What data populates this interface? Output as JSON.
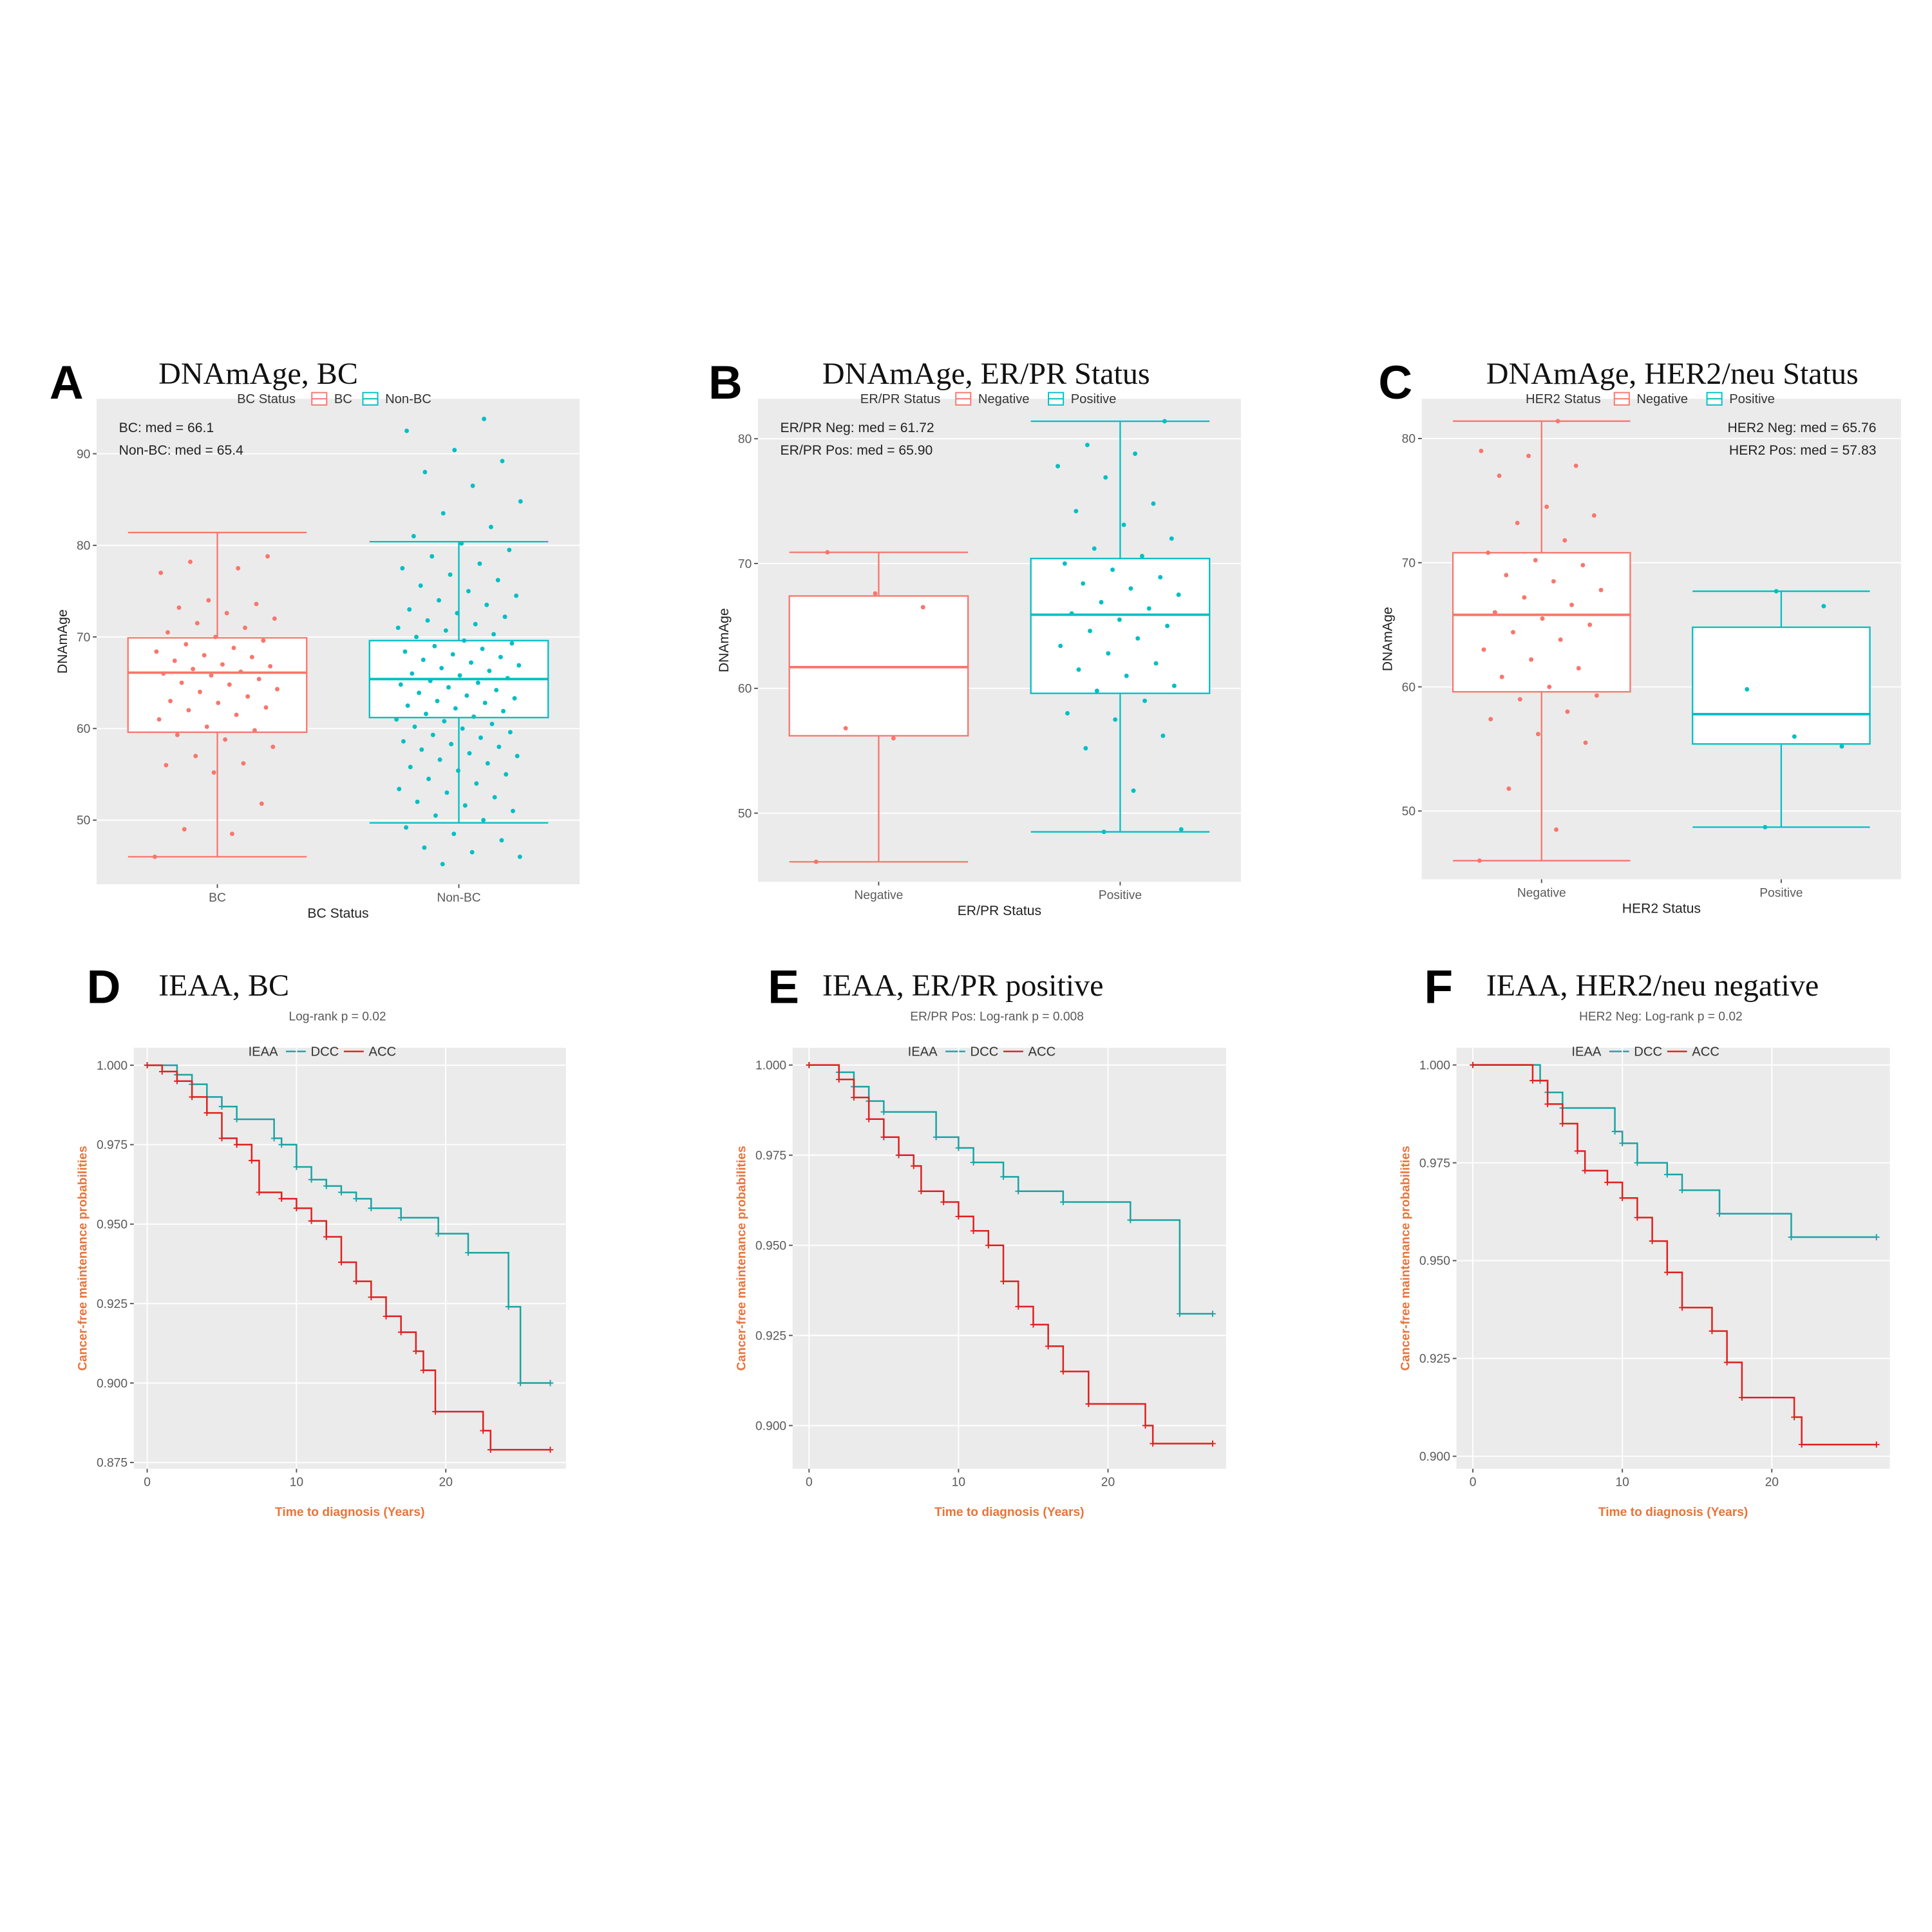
{
  "chart_data": [
    {
      "type": "box",
      "panel": "A",
      "title": "DNAmAge, BC",
      "legend_title": "BC Status",
      "xlabel": "BC Status",
      "ylabel": "DNAmAge",
      "annotations": [
        "BC: med = 66.1",
        "Non-BC: med = 65.4"
      ],
      "annotation_corner": "top-left",
      "categories": [
        "BC",
        "Non-BC"
      ],
      "colors": [
        "#F8766D",
        "#00BFC4"
      ],
      "ylim": [
        43,
        96
      ],
      "yticks": [
        50,
        60,
        70,
        80,
        90
      ],
      "grid": true,
      "stats": [
        {
          "whislo": 46,
          "q1": 59.6,
          "med": 66.1,
          "q3": 69.9,
          "whishi": 81.4,
          "points": [
            46,
            48.5,
            49,
            51.8,
            55.2,
            56,
            56.2,
            57,
            58,
            58.8,
            59.3,
            59.8,
            60.2,
            61,
            61.5,
            62,
            62.3,
            62.8,
            63,
            63.5,
            64,
            64.3,
            64.8,
            65,
            65.4,
            65.8,
            66,
            66.2,
            66.5,
            66.8,
            67,
            67.4,
            67.8,
            68,
            68.4,
            68.8,
            69.2,
            69.6,
            70,
            70.5,
            71,
            71.5,
            72,
            72.6,
            73.2,
            73.6,
            74,
            77,
            77.5,
            78.2,
            78.8
          ]
        },
        {
          "whislo": 49.7,
          "q1": 61.2,
          "med": 65.4,
          "q3": 69.6,
          "whishi": 80.4,
          "points": [
            45.2,
            46,
            46.5,
            47,
            47.8,
            48.5,
            49.2,
            50,
            50.5,
            51,
            51.6,
            52,
            52.5,
            53,
            53.4,
            54,
            54.5,
            55,
            55.4,
            55.8,
            56.2,
            56.6,
            57,
            57.3,
            57.7,
            58,
            58.3,
            58.6,
            59,
            59.3,
            59.6,
            60,
            60.2,
            60.5,
            60.8,
            61,
            61.3,
            61.6,
            61.9,
            62.2,
            62.5,
            62.8,
            63,
            63.3,
            63.6,
            63.9,
            64.2,
            64.5,
            64.8,
            65,
            65.2,
            65.5,
            65.8,
            66,
            66.3,
            66.6,
            66.9,
            67.2,
            67.5,
            67.8,
            68.1,
            68.4,
            68.7,
            69,
            69.3,
            69.6,
            70,
            70.3,
            70.7,
            71,
            71.4,
            71.8,
            72.2,
            72.6,
            73,
            73.5,
            74,
            74.5,
            75,
            75.6,
            76.2,
            76.8,
            77.5,
            78,
            78.8,
            79.5,
            80.2,
            81,
            82,
            83.5,
            84.8,
            86.5,
            88,
            89.2,
            90.4,
            92.5,
            93.8
          ]
        }
      ]
    },
    {
      "type": "box",
      "panel": "B",
      "title": "DNAmAge, ER/PR Status",
      "legend_title": "ER/PR Status",
      "xlabel": "ER/PR Status",
      "ylabel": "DNAmAge",
      "annotations": [
        "ER/PR Neg: med = 61.72",
        "ER/PR Pos: med = 65.90"
      ],
      "annotation_corner": "top-left",
      "categories": [
        "Negative",
        "Positive"
      ],
      "colors": [
        "#F8766D",
        "#00BFC4"
      ],
      "ylim": [
        44.5,
        83.2
      ],
      "yticks": [
        50,
        60,
        70,
        80
      ],
      "grid": true,
      "stats": [
        {
          "whislo": 46.1,
          "q1": 56.2,
          "med": 61.7,
          "q3": 67.4,
          "whishi": 70.9,
          "points": [
            46.1,
            56,
            56.8,
            66.5,
            67.6,
            70.9
          ]
        },
        {
          "whislo": 48.5,
          "q1": 59.6,
          "med": 65.9,
          "q3": 70.4,
          "whishi": 81.4,
          "points": [
            48.5,
            48.7,
            51.8,
            55.2,
            56.2,
            57.5,
            58,
            59,
            59.8,
            60.2,
            61,
            61.5,
            62,
            62.8,
            63.4,
            64,
            64.6,
            65,
            65.5,
            66,
            66.4,
            66.9,
            67.5,
            68,
            68.4,
            68.9,
            69.5,
            70,
            70.6,
            71.2,
            72,
            73.1,
            74.2,
            74.8,
            76.9,
            77.8,
            78.8,
            79.5,
            81.4
          ]
        }
      ]
    },
    {
      "type": "box",
      "panel": "C",
      "title": "DNAmAge, HER2/neu Status",
      "legend_title": "HER2 Status",
      "xlabel": "HER2 Status",
      "ylabel": "DNAmAge",
      "annotations": [
        "HER2 Neg: med = 65.76",
        "HER2 Pos: med = 57.83"
      ],
      "annotation_corner": "top-right",
      "categories": [
        "Negative",
        "Positive"
      ],
      "colors": [
        "#F8766D",
        "#00BFC4"
      ],
      "ylim": [
        44.5,
        83.2
      ],
      "yticks": [
        50,
        60,
        70,
        80
      ],
      "grid": true,
      "stats": [
        {
          "whislo": 46,
          "q1": 59.6,
          "med": 65.8,
          "q3": 70.8,
          "whishi": 81.4,
          "points": [
            46,
            48.5,
            51.8,
            55.5,
            56.2,
            57.4,
            58,
            59,
            59.3,
            60,
            60.8,
            61.5,
            62.2,
            63,
            63.8,
            64.4,
            65,
            65.5,
            66,
            66.6,
            67.2,
            67.8,
            68.5,
            69,
            69.8,
            70.2,
            70.8,
            71.8,
            73.2,
            73.8,
            74.5,
            77,
            77.8,
            78.6,
            79,
            81.4
          ]
        },
        {
          "whislo": 48.7,
          "q1": 55.4,
          "med": 57.8,
          "q3": 64.8,
          "whishi": 67.7,
          "points": [
            48.7,
            55.2,
            56,
            59.8,
            66.5,
            67.7
          ]
        }
      ]
    },
    {
      "type": "km",
      "panel": "D",
      "title": "IEAA, BC",
      "annotations": [
        "Log-rank p = 0.02"
      ],
      "legend_title": "IEAA",
      "xlabel": "Time to diagnosis (Years)",
      "ylabel": "Cancer-free maintenance probabilities",
      "xlim": [
        -0.9,
        28.05
      ],
      "xticks": [
        0,
        10,
        20
      ],
      "ylim": [
        0.873,
        1.0055
      ],
      "yticks": [
        {
          "value": 0.875,
          "label": "0.875"
        },
        {
          "value": 0.9,
          "label": "0.900"
        },
        {
          "value": 0.925,
          "label": "0.925"
        },
        {
          "value": 0.95,
          "label": "0.950"
        },
        {
          "value": 0.975,
          "label": "0.975"
        },
        {
          "value": 1,
          "label": "1.000"
        }
      ],
      "grid": true,
      "series": [
        {
          "name": "DCC",
          "color": "#1ba3a3",
          "x": [
            0,
            2,
            3,
            4,
            5,
            6,
            8.5,
            9,
            10,
            11,
            12,
            13,
            14,
            15,
            17,
            19.5,
            21.5,
            24.2,
            25,
            27
          ],
          "y": [
            1,
            0.997,
            0.994,
            0.99,
            0.987,
            0.983,
            0.977,
            0.975,
            0.968,
            0.964,
            0.962,
            0.96,
            0.958,
            0.955,
            0.952,
            0.947,
            0.941,
            0.924,
            0.9,
            0.9
          ]
        },
        {
          "name": "ACC",
          "color": "#e0201f",
          "x": [
            0,
            1,
            2,
            3,
            4,
            5,
            6,
            7,
            7.5,
            9,
            10,
            11,
            12,
            13,
            14,
            15,
            16,
            17,
            18,
            18.5,
            19.3,
            22.5,
            23,
            27
          ],
          "y": [
            1,
            0.998,
            0.995,
            0.99,
            0.985,
            0.977,
            0.975,
            0.97,
            0.96,
            0.958,
            0.955,
            0.951,
            0.946,
            0.938,
            0.932,
            0.927,
            0.921,
            0.916,
            0.91,
            0.904,
            0.891,
            0.885,
            0.879,
            0.879
          ]
        }
      ]
    },
    {
      "type": "km",
      "panel": "E",
      "title": "IEAA, ER/PR positive",
      "annotations": [
        "ER/PR Pos: Log-rank p = 0.008"
      ],
      "legend_title": "IEAA",
      "xlabel": "Time to diagnosis (Years)",
      "ylabel": "Cancer-free maintenance probabilities",
      "xlim": [
        -1.1,
        27.9
      ],
      "xticks": [
        0,
        10,
        20
      ],
      "ylim": [
        0.888,
        1.0048
      ],
      "yticks": [
        {
          "value": 0.9,
          "label": "0.900"
        },
        {
          "value": 0.925,
          "label": "0.925"
        },
        {
          "value": 0.95,
          "label": "0.950"
        },
        {
          "value": 0.975,
          "label": "0.975"
        },
        {
          "value": 1,
          "label": "1.000"
        }
      ],
      "grid": true,
      "series": [
        {
          "name": "DCC",
          "color": "#1ba3a3",
          "x": [
            0,
            2,
            3,
            4,
            5,
            8.5,
            10,
            11,
            13,
            14,
            17,
            21.5,
            24.8,
            27
          ],
          "y": [
            1,
            0.998,
            0.994,
            0.99,
            0.987,
            0.98,
            0.977,
            0.973,
            0.969,
            0.965,
            0.962,
            0.957,
            0.931,
            0.931
          ]
        },
        {
          "name": "ACC",
          "color": "#e0201f",
          "x": [
            0,
            2,
            3,
            4,
            5,
            6,
            7,
            7.5,
            9,
            10,
            11,
            12,
            13,
            14,
            15,
            16,
            17,
            18.7,
            22.5,
            23,
            27
          ],
          "y": [
            1,
            0.996,
            0.991,
            0.985,
            0.98,
            0.975,
            0.972,
            0.965,
            0.962,
            0.958,
            0.954,
            0.95,
            0.94,
            0.933,
            0.928,
            0.922,
            0.915,
            0.906,
            0.9,
            0.895,
            0.895
          ]
        }
      ]
    },
    {
      "type": "km",
      "panel": "F",
      "title": "IEAA, HER2/neu negative",
      "annotations": [
        "HER2 Neg: Log-rank p = 0.02"
      ],
      "legend_title": "IEAA",
      "xlabel": "Time to diagnosis (Years)",
      "ylabel": "Cancer-free maintenance probabilities",
      "xlim": [
        -1.1,
        27.9
      ],
      "xticks": [
        0,
        10,
        20
      ],
      "ylim": [
        0.8968,
        1.0044
      ],
      "yticks": [
        {
          "value": 0.9,
          "label": "0.900"
        },
        {
          "value": 0.925,
          "label": "0.925"
        },
        {
          "value": 0.95,
          "label": "0.950"
        },
        {
          "value": 0.975,
          "label": "0.975"
        },
        {
          "value": 1,
          "label": "1.000"
        }
      ],
      "grid": true,
      "series": [
        {
          "name": "DCC",
          "color": "#1ba3a3",
          "x": [
            0,
            4.5,
            5,
            6,
            9.5,
            10,
            11,
            13,
            14,
            16.5,
            21.3,
            27
          ],
          "y": [
            1,
            0.996,
            0.993,
            0.989,
            0.983,
            0.98,
            0.975,
            0.972,
            0.968,
            0.962,
            0.956,
            0.956
          ]
        },
        {
          "name": "ACC",
          "color": "#e0201f",
          "x": [
            0,
            4,
            5,
            6,
            7,
            7.5,
            9,
            10,
            11,
            12,
            13,
            14,
            16,
            17,
            18,
            21.5,
            22,
            27
          ],
          "y": [
            1,
            0.996,
            0.99,
            0.985,
            0.978,
            0.973,
            0.97,
            0.966,
            0.961,
            0.955,
            0.947,
            0.938,
            0.932,
            0.924,
            0.915,
            0.91,
            0.903,
            0.903
          ]
        }
      ]
    }
  ]
}
